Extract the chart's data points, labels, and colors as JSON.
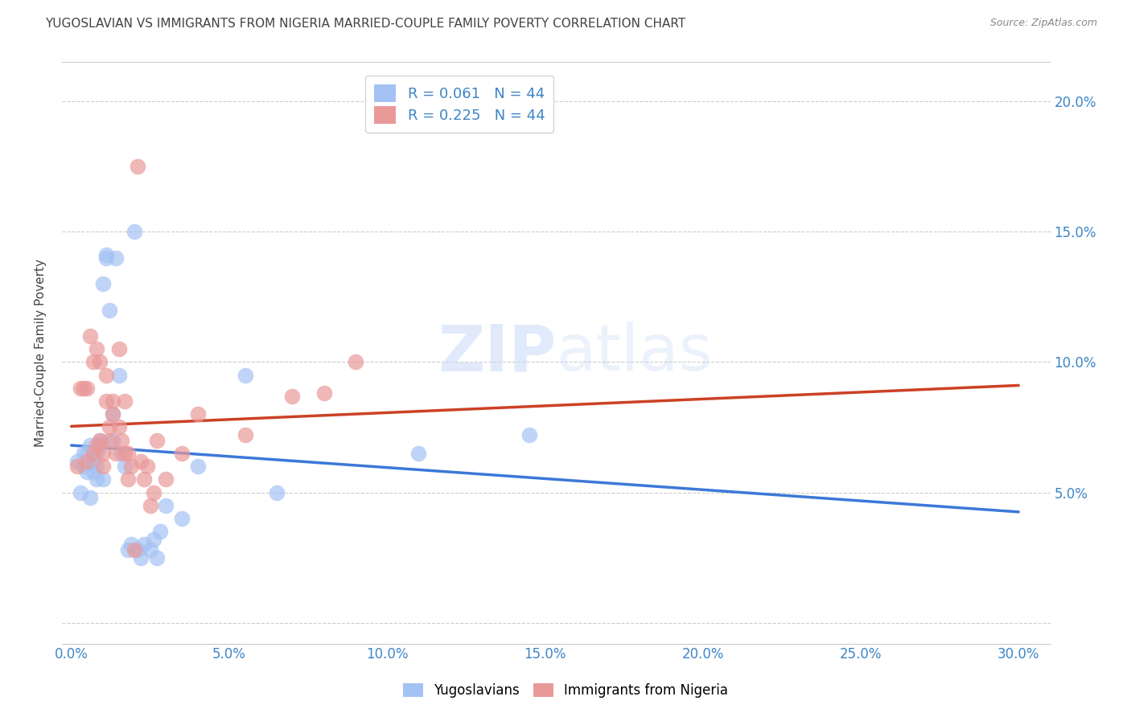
{
  "title": "YUGOSLAVIAN VS IMMIGRANTS FROM NIGERIA MARRIED-COUPLE FAMILY POVERTY CORRELATION CHART",
  "source": "Source: ZipAtlas.com",
  "ylabel": "Married-Couple Family Poverty",
  "yticks": [
    0.0,
    0.05,
    0.1,
    0.15,
    0.2
  ],
  "ytick_labels": [
    "",
    "5.0%",
    "10.0%",
    "15.0%",
    "20.0%"
  ],
  "xticks": [
    0.0,
    0.05,
    0.1,
    0.15,
    0.2,
    0.25,
    0.3
  ],
  "xtick_labels": [
    "0.0%",
    "5.0%",
    "10.0%",
    "15.0%",
    "20.0%",
    "25.0%",
    "30.0%"
  ],
  "xlim": [
    -0.003,
    0.31
  ],
  "ylim": [
    -0.008,
    0.215
  ],
  "legend_entries": [
    {
      "label": "R = 0.061   N = 44",
      "color": "#a4c2f4"
    },
    {
      "label": "R = 0.225   N = 44",
      "color": "#ea9999"
    }
  ],
  "series1_label": "Yugoslavians",
  "series2_label": "Immigrants from Nigeria",
  "series1_color": "#a4c2f4",
  "series2_color": "#ea9999",
  "series1_line_color": "#3c78d8",
  "series2_line_color": "#cc4125",
  "watermark_zip": "ZIP",
  "watermark_atlas": "atlas",
  "title_color": "#434343",
  "axis_color": "#3d85c8",
  "grid_color": "#cccccc",
  "yugoslav_x": [
    0.002,
    0.003,
    0.004,
    0.004,
    0.005,
    0.005,
    0.006,
    0.006,
    0.007,
    0.007,
    0.007,
    0.008,
    0.008,
    0.008,
    0.009,
    0.009,
    0.01,
    0.01,
    0.011,
    0.011,
    0.012,
    0.013,
    0.013,
    0.014,
    0.015,
    0.016,
    0.017,
    0.018,
    0.019,
    0.02,
    0.021,
    0.022,
    0.023,
    0.025,
    0.026,
    0.027,
    0.028,
    0.03,
    0.035,
    0.04,
    0.055,
    0.065,
    0.11,
    0.145
  ],
  "yugoslav_y": [
    0.062,
    0.05,
    0.065,
    0.06,
    0.065,
    0.058,
    0.068,
    0.048,
    0.065,
    0.062,
    0.058,
    0.065,
    0.06,
    0.055,
    0.07,
    0.068,
    0.055,
    0.13,
    0.14,
    0.141,
    0.12,
    0.08,
    0.07,
    0.14,
    0.095,
    0.065,
    0.06,
    0.028,
    0.03,
    0.15,
    0.028,
    0.025,
    0.03,
    0.028,
    0.032,
    0.025,
    0.035,
    0.045,
    0.04,
    0.06,
    0.095,
    0.05,
    0.065,
    0.072
  ],
  "nigeria_x": [
    0.002,
    0.003,
    0.004,
    0.005,
    0.005,
    0.006,
    0.007,
    0.007,
    0.008,
    0.008,
    0.009,
    0.009,
    0.01,
    0.01,
    0.011,
    0.011,
    0.012,
    0.012,
    0.013,
    0.013,
    0.014,
    0.015,
    0.015,
    0.016,
    0.017,
    0.017,
    0.018,
    0.018,
    0.019,
    0.02,
    0.021,
    0.022,
    0.023,
    0.024,
    0.025,
    0.026,
    0.027,
    0.03,
    0.035,
    0.04,
    0.055,
    0.07,
    0.08,
    0.09
  ],
  "nigeria_y": [
    0.06,
    0.09,
    0.09,
    0.09,
    0.062,
    0.11,
    0.1,
    0.065,
    0.068,
    0.105,
    0.07,
    0.1,
    0.065,
    0.06,
    0.085,
    0.095,
    0.07,
    0.075,
    0.08,
    0.085,
    0.065,
    0.075,
    0.105,
    0.07,
    0.085,
    0.065,
    0.055,
    0.065,
    0.06,
    0.028,
    0.175,
    0.062,
    0.055,
    0.06,
    0.045,
    0.05,
    0.07,
    0.055,
    0.065,
    0.08,
    0.072,
    0.087,
    0.088,
    0.1
  ]
}
